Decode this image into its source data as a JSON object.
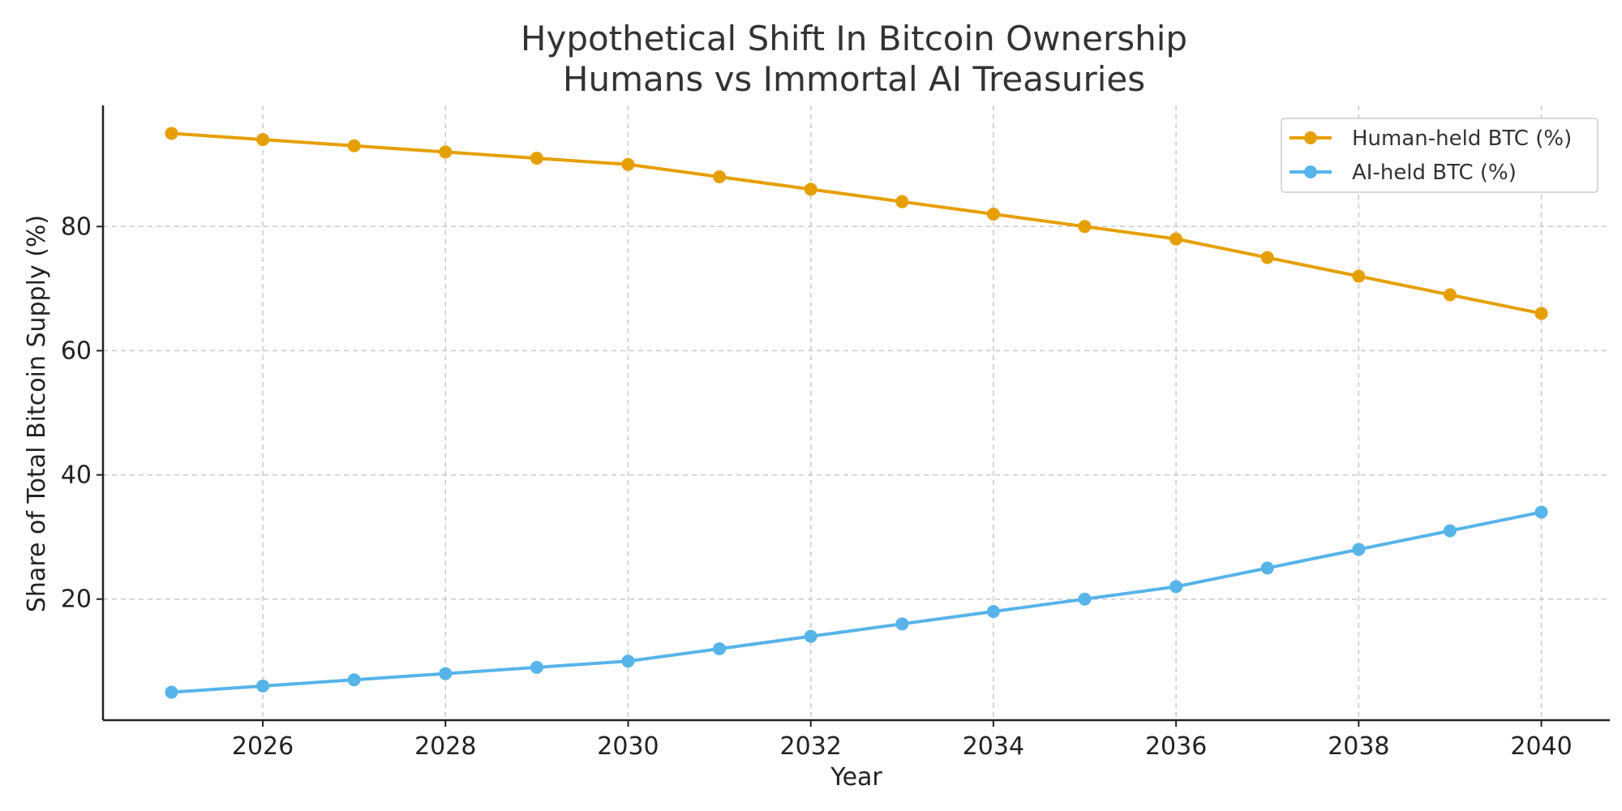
{
  "chart_data": {
    "type": "line",
    "title_lines": [
      "Hypothetical Shift In Bitcoin Ownership",
      "Humans vs Immortal AI Treasuries"
    ],
    "xlabel": "Year",
    "ylabel": "Share of Total Bitcoin Supply (%)",
    "x": [
      2025,
      2026,
      2027,
      2028,
      2029,
      2030,
      2031,
      2032,
      2033,
      2034,
      2035,
      2036,
      2037,
      2038,
      2039,
      2040
    ],
    "xlim": [
      2024.25,
      2040.75
    ],
    "ylim": [
      0.5,
      99.5
    ],
    "xticks": [
      2026,
      2028,
      2030,
      2032,
      2034,
      2036,
      2038,
      2040
    ],
    "yticks": [
      20,
      40,
      60,
      80
    ],
    "grid": true,
    "legend_position": "top-right",
    "series": [
      {
        "name": "Human-held BTC (%)",
        "color": "#E69F00",
        "values": [
          95,
          94,
          93,
          92,
          91,
          90,
          88,
          86,
          84,
          82,
          80,
          78,
          75,
          72,
          69,
          66
        ]
      },
      {
        "name": "AI-held BTC (%)",
        "color": "#56B4E9",
        "values": [
          5,
          6,
          7,
          8,
          9,
          10,
          12,
          14,
          16,
          18,
          20,
          22,
          25,
          28,
          31,
          34
        ]
      }
    ]
  }
}
